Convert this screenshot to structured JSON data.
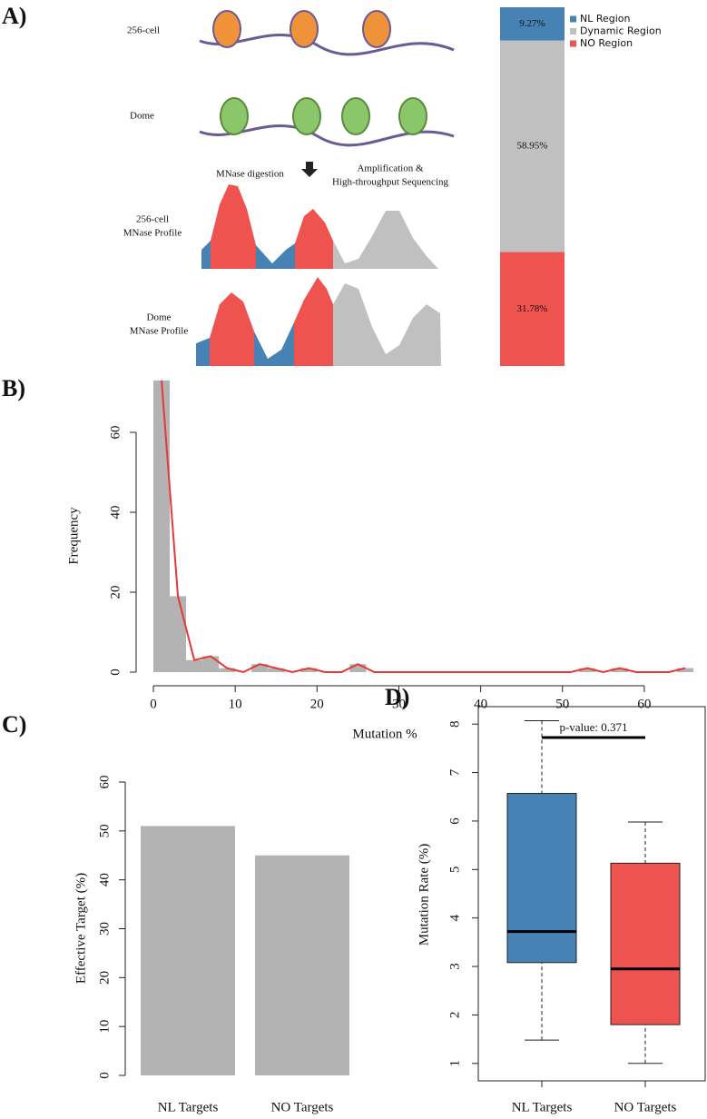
{
  "illustration": {
    "panel_label": "A)",
    "stage_top": "256-cell",
    "stage_bottom": "Dome",
    "digestion": "MNase digestion",
    "sequencing": [
      "Amplification &",
      "High-throughput Sequencing"
    ],
    "profile_top": [
      "256-cell",
      "MNase Profile"
    ],
    "profile_bottom": [
      "Dome",
      "MNase Profile"
    ]
  },
  "chart_data": [
    {
      "type": "stacked_bar",
      "ylim": [
        0,
        100
      ],
      "series": [
        {
          "name": "NL Region",
          "color": "#4682b4",
          "values": [
            9.27
          ],
          "value_labels": [
            "9.27%"
          ]
        },
        {
          "name": "Dynamic Region",
          "color": "#c0c0c0",
          "values": [
            58.95
          ],
          "value_labels": [
            "58.95%"
          ]
        },
        {
          "name": "NO Region",
          "color": "#ef5350",
          "values": [
            31.78
          ],
          "value_labels": [
            "31.78%"
          ]
        }
      ]
    },
    {
      "type": "histogram",
      "panel_label": "B)",
      "xlabel": "Mutation %",
      "ylabel": "Frequency",
      "color": "#b3b3b3",
      "bins": [
        0,
        2,
        4,
        6,
        8,
        10,
        12,
        14,
        16,
        18,
        20,
        22,
        24,
        26,
        28,
        30,
        32,
        34,
        36,
        38,
        40,
        42,
        44,
        46,
        48,
        50,
        52,
        54,
        56,
        58,
        60,
        62,
        64,
        66
      ],
      "values": [
        73,
        19,
        3,
        4,
        1,
        0,
        2,
        1,
        0,
        1,
        0,
        0,
        2,
        0,
        0,
        0,
        0,
        0,
        0,
        0,
        0,
        0,
        0,
        0,
        0,
        0,
        1,
        0,
        1,
        0,
        0,
        0,
        1
      ],
      "line": {
        "color": "#e53935",
        "x": [
          1,
          3,
          5,
          7,
          9,
          11,
          13,
          15,
          17,
          19,
          21,
          23,
          25,
          27,
          29,
          31,
          33,
          35,
          37,
          39,
          41,
          43,
          45,
          47,
          49,
          51,
          53,
          55,
          57,
          59,
          61,
          63,
          65
        ],
        "values": [
          73,
          19,
          3,
          4,
          1,
          0,
          2,
          1,
          0,
          1,
          0,
          0,
          2,
          0,
          0,
          0,
          0,
          0,
          0,
          0,
          0,
          0,
          0,
          0,
          0,
          0,
          1,
          0,
          1,
          0,
          0,
          0,
          1
        ]
      },
      "xlim": [
        0,
        66
      ],
      "ylim": [
        0,
        75
      ],
      "xticks": [
        0,
        10,
        20,
        30,
        40,
        50,
        60
      ],
      "yticks": [
        0,
        20,
        40,
        60
      ]
    },
    {
      "type": "bar",
      "panel_label": "C)",
      "ylabel": "Effective Target (%)",
      "color": "#b3b3b3",
      "categories": [
        "NL Targets",
        "NO Targets"
      ],
      "values": [
        51,
        45
      ],
      "ylim": [
        0,
        60
      ],
      "yticks": [
        0,
        10,
        20,
        30,
        40,
        50,
        60
      ]
    },
    {
      "type": "box",
      "panel_label": "D)",
      "ylabel": "Mutation Rate (%)",
      "annotation": "p-value: 0.371",
      "categories": [
        "NL Targets",
        "NO Targets"
      ],
      "colors": [
        "#4682b4",
        "#ef5350"
      ],
      "min": [
        1.48,
        1.0
      ],
      "q1": [
        3.08,
        1.8
      ],
      "median": [
        3.72,
        2.95
      ],
      "q3": [
        6.57,
        5.13
      ],
      "max": [
        8.07,
        5.98
      ],
      "ylim": [
        0.64,
        8.36
      ],
      "yticks": [
        1,
        2,
        3,
        4,
        5,
        6,
        7,
        8
      ]
    }
  ]
}
